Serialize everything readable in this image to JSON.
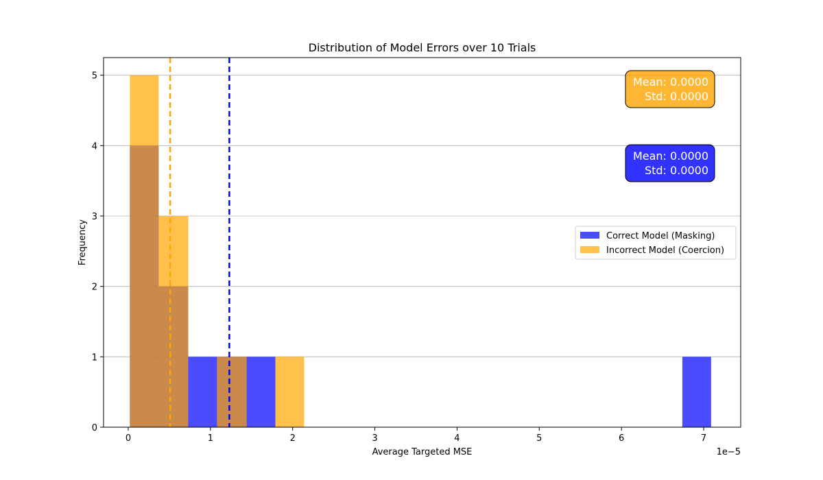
{
  "chart_data": {
    "type": "bar",
    "title": "Distribution of Model Errors over 10 Trials",
    "xlabel": "Average Targeted MSE",
    "ylabel": "Frequency",
    "x_offset_label": "1e−5",
    "xlim": [
      -0.3,
      7.45
    ],
    "ylim": [
      0,
      5.25
    ],
    "xticks": [
      0,
      1,
      2,
      3,
      4,
      5,
      6,
      7
    ],
    "yticks": [
      0,
      1,
      2,
      3,
      4,
      5
    ],
    "grid": "y",
    "legend_position": "center-right",
    "series": [
      {
        "name": "Correct Model (Masking)",
        "color": "#0000ff",
        "alpha": 0.7,
        "bins": [
          {
            "x0": 0.02,
            "x1": 0.37,
            "count": 4
          },
          {
            "x0": 0.37,
            "x1": 0.73,
            "count": 2
          },
          {
            "x0": 0.73,
            "x1": 1.08,
            "count": 1
          },
          {
            "x0": 1.08,
            "x1": 1.44,
            "count": 1
          },
          {
            "x0": 1.44,
            "x1": 1.79,
            "count": 1
          },
          {
            "x0": 6.74,
            "x1": 7.09,
            "count": 1
          }
        ],
        "mean_line": 1.23,
        "stats_box": {
          "mean": "Mean: 0.0000",
          "std": "Std: 0.0000"
        }
      },
      {
        "name": "Incorrect Model (Coercion)",
        "color": "#ffa500",
        "alpha": 0.7,
        "bins": [
          {
            "x0": 0.02,
            "x1": 0.37,
            "count": 5
          },
          {
            "x0": 0.37,
            "x1": 0.73,
            "count": 3
          },
          {
            "x0": 1.08,
            "x1": 1.44,
            "count": 1
          },
          {
            "x0": 1.79,
            "x1": 2.14,
            "count": 1
          }
        ],
        "mean_line": 0.51,
        "stats_box": {
          "mean": "Mean: 0.0000",
          "std": "Std: 0.0000"
        }
      }
    ]
  }
}
